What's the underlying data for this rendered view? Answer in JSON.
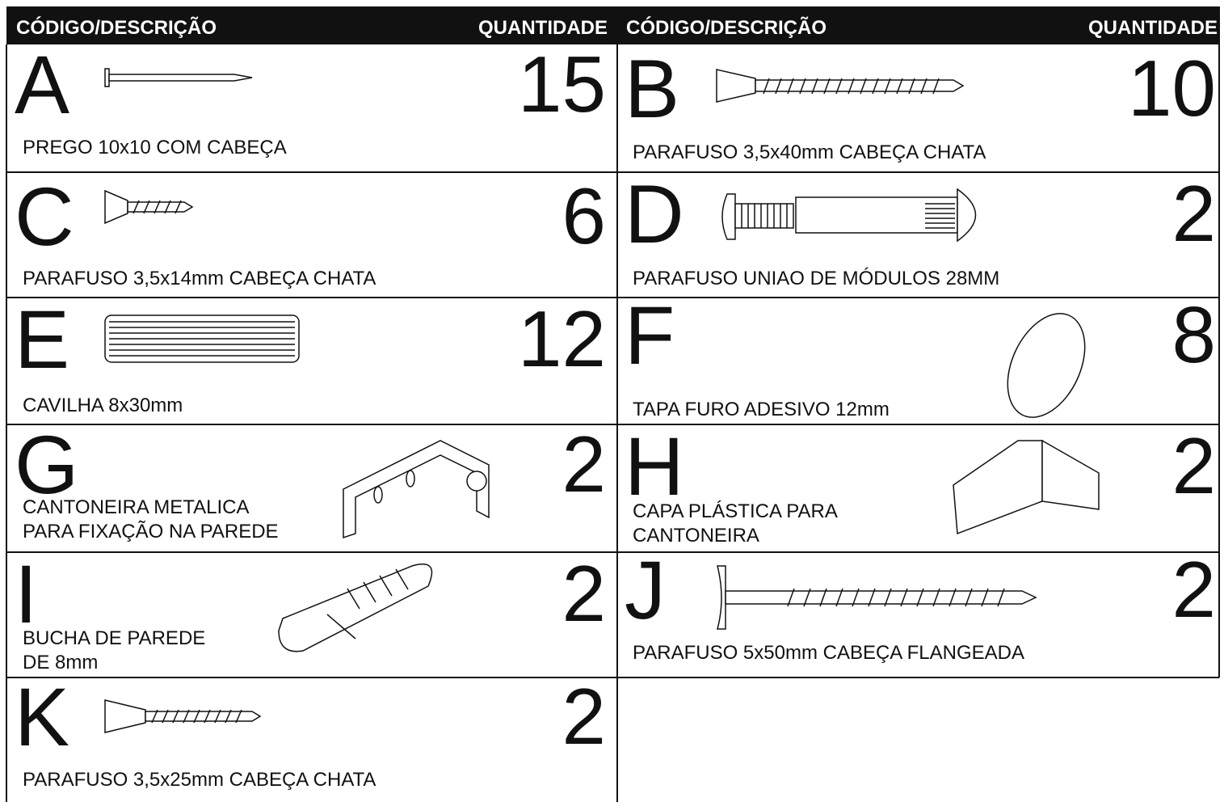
{
  "header": {
    "columns": [
      {
        "code_label": "CÓDIGO/DESCRIÇÃO",
        "quantity_label": "QUANTIDADE"
      },
      {
        "code_label": "CÓDIGO/DESCRIÇÃO",
        "quantity_label": "QUANTIDADE"
      }
    ]
  },
  "items": [
    {
      "code": "A",
      "description": [
        "PREGO 10x10 COM CABEÇA"
      ],
      "quantity": 15
    },
    {
      "code": "B",
      "description": [
        "PARAFUSO 3,5x40mm CABEÇA CHATA"
      ],
      "quantity": 10
    },
    {
      "code": "C",
      "description": [
        "PARAFUSO 3,5x14mm CABEÇA CHATA"
      ],
      "quantity": 6
    },
    {
      "code": "D",
      "description": [
        "PARAFUSO UNIAO DE MÓDULOS 28MM"
      ],
      "quantity": 2
    },
    {
      "code": "E",
      "description": [
        "CAVILHA 8x30mm"
      ],
      "quantity": 12
    },
    {
      "code": "F",
      "description": [
        "TAPA FURO ADESIVO 12mm"
      ],
      "quantity": 8
    },
    {
      "code": "G",
      "description": [
        "CANTONEIRA METALICA",
        "PARA FIXAÇÃO NA PAREDE"
      ],
      "quantity": 2
    },
    {
      "code": "H",
      "description": [
        "CAPA PLÁSTICA PARA",
        "CANTONEIRA"
      ],
      "quantity": 2
    },
    {
      "code": "I",
      "description": [
        "BUCHA DE PAREDE",
        "DE 8mm"
      ],
      "quantity": 2
    },
    {
      "code": "J",
      "description": [
        "PARAFUSO 5x50mm CABEÇA FLANGEADA"
      ],
      "quantity": 2
    },
    {
      "code": "K",
      "description": [
        "PARAFUSO 3,5x25mm CABEÇA CHATA"
      ],
      "quantity": 2
    }
  ]
}
